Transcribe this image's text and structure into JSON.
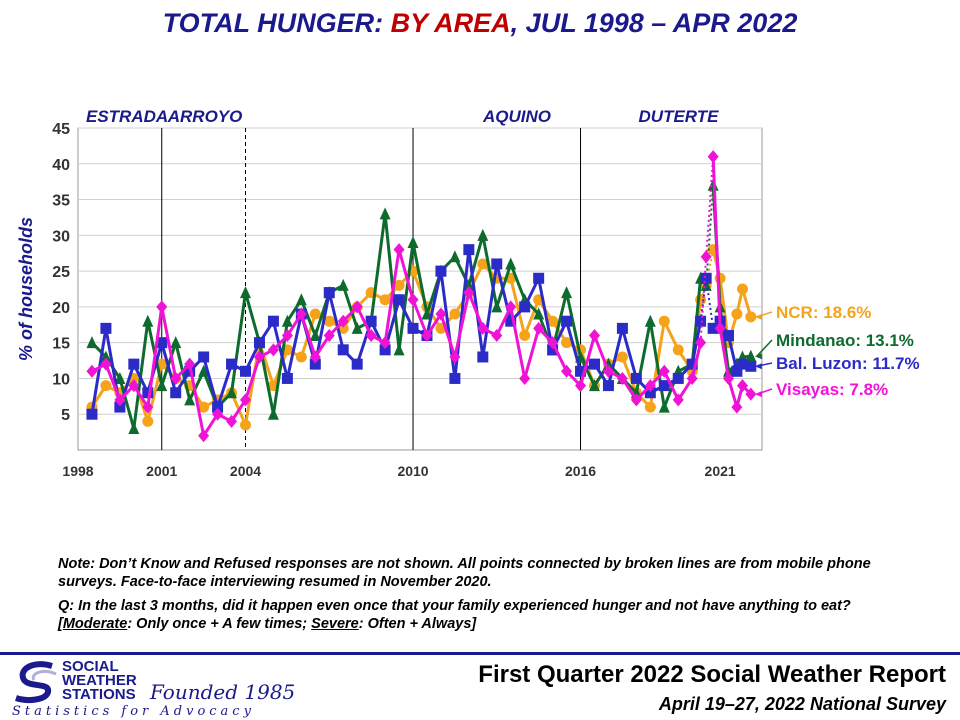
{
  "title": {
    "part1": "TOTAL HUNGER: ",
    "part2": "BY AREA",
    "part3": ", JUL 1998 – APR 2022"
  },
  "notes": {
    "note": "Note: Don’t Know and Refused responses are not shown. All points connected by broken lines are from mobile phone surveys. Face-to-face interviewing resumed in November 2020.",
    "q_prefix": "Q: In the last 3 months, did it happen even once that your family experienced hunger and not have anything to eat? [",
    "moderate_word": "Moderate",
    "moderate_text": ": Only once + A few times; ",
    "severe_word": "Severe",
    "severe_text": ": Often + Always]"
  },
  "footer": {
    "report_title": "First Quarter 2022 Social Weather Report",
    "report_subtitle": "April 19–27, 2022 National Survey",
    "logo_name_1": "SOCIAL",
    "logo_name_2": "WEATHER",
    "logo_name_3": "STATIONS",
    "logo_founded": "Founded 1985",
    "logo_tagline": "Statistics for Advocacy"
  },
  "chart_data": {
    "type": "line",
    "ylabel": "% of households",
    "ylim": [
      0,
      45
    ],
    "xlim": [
      1998,
      2022.5
    ],
    "yticks": [
      5,
      10,
      15,
      20,
      25,
      30,
      35,
      40,
      45
    ],
    "xticks": [
      1998,
      2001,
      2004,
      2010,
      2016,
      2021
    ],
    "grid": true,
    "legend": "right end labels",
    "administrations": [
      {
        "label": "ESTRADA",
        "start": 1998
      },
      {
        "label": "ARROYO",
        "start": 2001
      },
      {
        "label": "AQUINO",
        "start": 2010
      },
      {
        "label": "DUTERTE",
        "start": 2016
      }
    ],
    "dividers": [
      {
        "x": 2001,
        "style": "solid"
      },
      {
        "x": 2004,
        "style": "dashed"
      },
      {
        "x": 2010,
        "style": "solid"
      },
      {
        "x": 2016,
        "style": "solid"
      }
    ],
    "mobile_period": [
      2020.3,
      2020.75
    ],
    "series": [
      {
        "name": "NCR",
        "end_label": "NCR: 18.6%",
        "color": "#f5a31a",
        "marker": "circle",
        "x": [
          1998.5,
          1999,
          1999.5,
          2000,
          2000.5,
          2001,
          2001.5,
          2002,
          2002.5,
          2003,
          2003.5,
          2004,
          2004.5,
          2005,
          2005.5,
          2006,
          2006.5,
          2007,
          2007.5,
          2008,
          2008.5,
          2009,
          2009.5,
          2010,
          2010.5,
          2011,
          2011.5,
          2012,
          2012.5,
          2013,
          2013.5,
          2014,
          2014.5,
          2015,
          2015.5,
          2016,
          2016.5,
          2017,
          2017.5,
          2018,
          2018.5,
          2019,
          2019.5,
          2020,
          2020.3,
          2020.5,
          2020.75,
          2021,
          2021.3,
          2021.6,
          2021.8,
          2022.1
        ],
        "values": [
          6,
          9,
          8,
          10,
          4,
          12,
          10,
          9,
          6,
          7,
          8,
          3.5,
          15,
          9,
          14,
          13,
          19,
          18,
          17,
          20,
          22,
          21,
          23,
          25,
          20,
          17,
          19,
          22,
          26,
          24,
          24,
          16,
          21,
          18,
          15,
          14,
          9,
          12,
          13,
          8,
          6,
          18,
          14,
          11,
          21,
          23,
          28,
          24,
          15,
          19,
          22.5,
          18.6
        ]
      },
      {
        "name": "Mindanao",
        "end_label": "Mindanao: 13.1%",
        "color": "#0e6b2e",
        "marker": "triangle",
        "x": [
          1998.5,
          1999,
          1999.5,
          2000,
          2000.5,
          2001,
          2001.5,
          2002,
          2002.5,
          2003,
          2003.5,
          2004,
          2004.5,
          2005,
          2005.5,
          2006,
          2006.5,
          2007,
          2007.5,
          2008,
          2008.5,
          2009,
          2009.5,
          2010,
          2010.5,
          2011,
          2011.5,
          2012,
          2012.5,
          2013,
          2013.5,
          2014,
          2014.5,
          2015,
          2015.5,
          2016,
          2016.5,
          2017,
          2017.5,
          2018,
          2018.5,
          2019,
          2019.5,
          2020,
          2020.3,
          2020.5,
          2020.75,
          2021,
          2021.3,
          2021.6,
          2021.8,
          2022.1
        ],
        "values": [
          15,
          13,
          10,
          3,
          18,
          9,
          15,
          7,
          11,
          6,
          8,
          22,
          15,
          5,
          18,
          21,
          16,
          22,
          23,
          17,
          18,
          33,
          14,
          29,
          19,
          25,
          27,
          23,
          30,
          20,
          26,
          21,
          19,
          14,
          22,
          13,
          9,
          12,
          10,
          8,
          18,
          6,
          11,
          12,
          24,
          23,
          37,
          20,
          11,
          12,
          13,
          13.1
        ]
      },
      {
        "name": "Bal. Luzon",
        "end_label": "Bal. Luzon: 11.7%",
        "color": "#2b2bc8",
        "marker": "square",
        "x": [
          1998.5,
          1999,
          1999.5,
          2000,
          2000.5,
          2001,
          2001.5,
          2002,
          2002.5,
          2003,
          2003.5,
          2004,
          2004.5,
          2005,
          2005.5,
          2006,
          2006.5,
          2007,
          2007.5,
          2008,
          2008.5,
          2009,
          2009.5,
          2010,
          2010.5,
          2011,
          2011.5,
          2012,
          2012.5,
          2013,
          2013.5,
          2014,
          2014.5,
          2015,
          2015.5,
          2016,
          2016.5,
          2017,
          2017.5,
          2018,
          2018.5,
          2019,
          2019.5,
          2020,
          2020.3,
          2020.5,
          2020.75,
          2021,
          2021.3,
          2021.6,
          2021.8,
          2022.1
        ],
        "values": [
          5,
          17,
          6,
          12,
          8,
          15,
          8,
          11,
          13,
          6,
          12,
          11,
          15,
          18,
          10,
          19,
          12,
          22,
          14,
          12,
          18,
          14,
          21,
          17,
          16,
          25,
          10,
          28,
          13,
          26,
          18,
          20,
          24,
          14,
          18,
          11,
          12,
          9,
          17,
          10,
          8,
          9,
          10,
          12,
          18,
          24,
          17,
          18,
          16,
          11,
          12,
          11.7
        ]
      },
      {
        "name": "Visayas",
        "end_label": "Visayas: 7.8%",
        "color": "#f013d6",
        "marker": "diamond",
        "x": [
          1998.5,
          1999,
          1999.5,
          2000,
          2000.5,
          2001,
          2001.5,
          2002,
          2002.5,
          2003,
          2003.5,
          2004,
          2004.5,
          2005,
          2005.5,
          2006,
          2006.5,
          2007,
          2007.5,
          2008,
          2008.5,
          2009,
          2009.5,
          2010,
          2010.5,
          2011,
          2011.5,
          2012,
          2012.5,
          2013,
          2013.5,
          2014,
          2014.5,
          2015,
          2015.5,
          2016,
          2016.5,
          2017,
          2017.5,
          2018,
          2018.5,
          2019,
          2019.5,
          2020,
          2020.3,
          2020.5,
          2020.75,
          2021,
          2021.3,
          2021.6,
          2021.8,
          2022.1
        ],
        "values": [
          11,
          12,
          7,
          9,
          6,
          20,
          10,
          12,
          2,
          5,
          4,
          7,
          13,
          14,
          16,
          19,
          13,
          16,
          18,
          20,
          16,
          15,
          28,
          21,
          16,
          19,
          13,
          22,
          17,
          16,
          20,
          10,
          17,
          15,
          11,
          9,
          16,
          11,
          10,
          7,
          9,
          11,
          7,
          10,
          15,
          27,
          41,
          17,
          10,
          6,
          9,
          7.8
        ]
      }
    ]
  }
}
